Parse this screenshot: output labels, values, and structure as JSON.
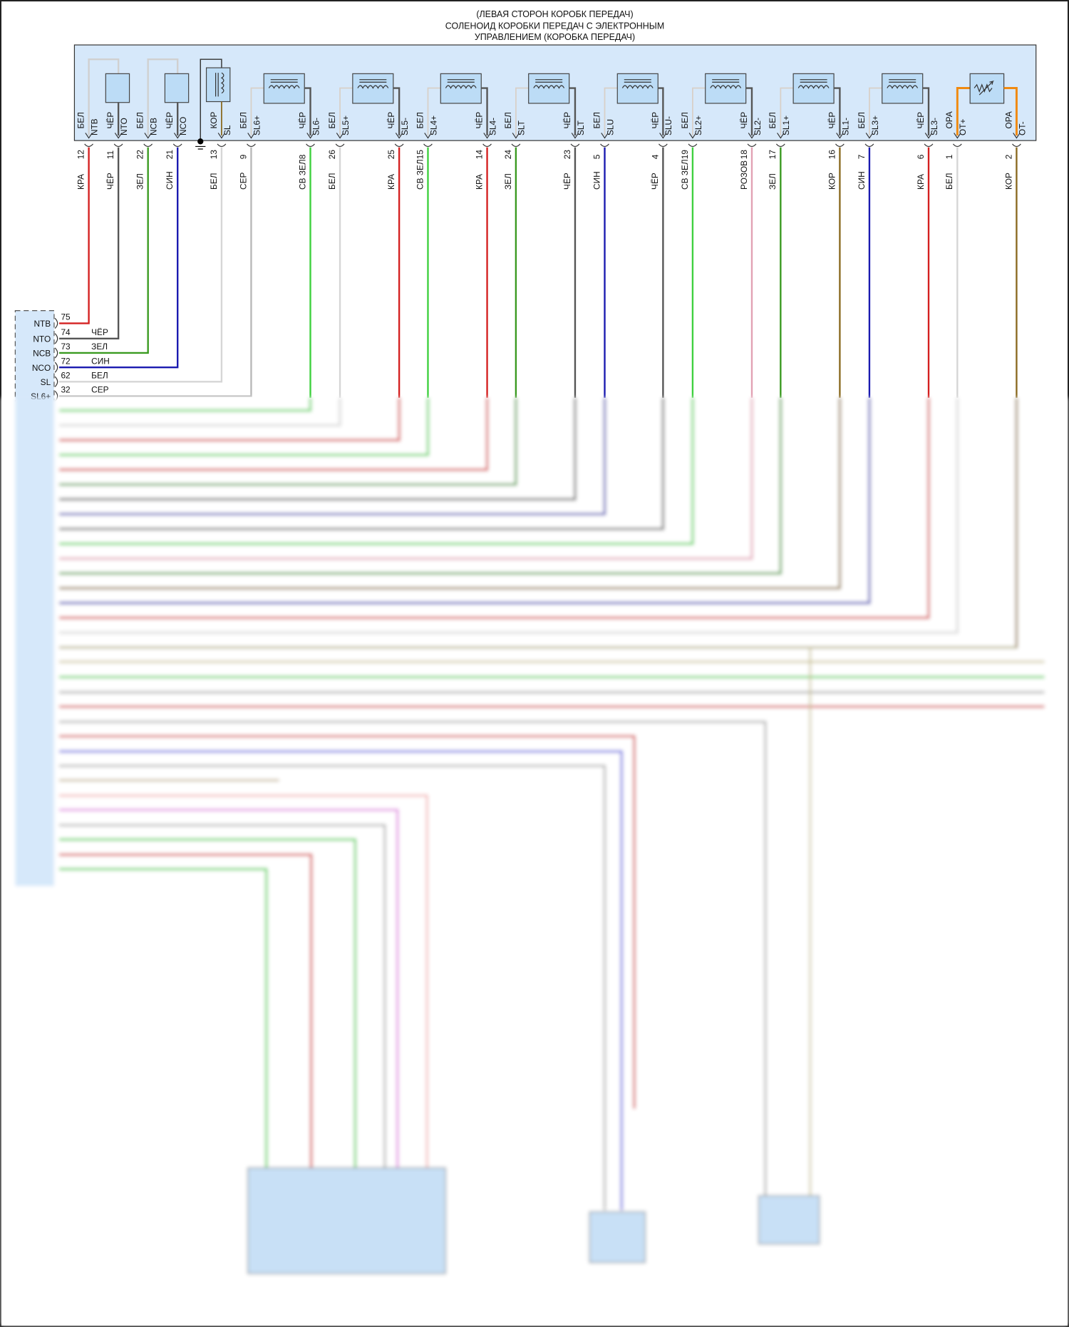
{
  "title": {
    "lines": [
      "(ЛЕВАЯ СТОРОН КОРОБК ПЕРЕДАЧ)",
      "СОЛЕНОИД КОРОБКИ ПЕРЕДАЧ С ЭЛЕКТРОННЫМ",
      "УПРАВЛЕНИЕМ (КОРОБКА ПЕРЕДАЧ)"
    ]
  },
  "wire_colors": {
    "КРА": "#d42020",
    "ЧЁР": "#555555",
    "ЗЕЛ": "#3a9a20",
    "СИН": "#1a1ab0",
    "БЕЛ": "#d6d6d6",
    "СЕР": "#b8b8b8",
    "СВ ЗЕЛ": "#3ed03e",
    "РОЗОВ": "#e2a2b4",
    "КОР": "#8a6a20",
    "ОРА": "#f08a10"
  },
  "panel_fill": "#d6e8fa",
  "pins": [
    {
      "num": "12",
      "wire": "КРА",
      "inner": "БЕЛ",
      "name": "NTB"
    },
    {
      "num": "11",
      "wire": "ЧЁР",
      "inner": "ЧЁР",
      "name": "NTO"
    },
    {
      "num": "22",
      "wire": "ЗЕЛ",
      "inner": "БЕЛ",
      "name": "NCB"
    },
    {
      "num": "21",
      "wire": "СИН",
      "inner": "ЧЁР",
      "name": "NCO"
    },
    {
      "num": "13",
      "wire": "БЕЛ",
      "inner": "КОР",
      "name": "SL"
    },
    {
      "num": "9",
      "wire": "СЕР",
      "inner": "БЕЛ",
      "name": "SL6+"
    },
    {
      "num": "8",
      "wire": "СВ ЗЕЛ",
      "inner": "ЧЁР",
      "name": "SL6-"
    },
    {
      "num": "26",
      "wire": "БЕЛ",
      "inner": "БЕЛ",
      "name": "SL5+"
    },
    {
      "num": "25",
      "wire": "КРА",
      "inner": "ЧЁР",
      "name": "SL5-"
    },
    {
      "num": "15",
      "wire": "СВ ЗЕЛ",
      "inner": "БЕЛ",
      "name": "SL4+"
    },
    {
      "num": "14",
      "wire": "КРА",
      "inner": "ЧЁР",
      "name": "SL4-"
    },
    {
      "num": "24",
      "wire": "ЗЕЛ",
      "inner": "БЕЛ",
      "name": "SLT"
    },
    {
      "num": "23",
      "wire": "ЧЁР",
      "inner": "ЧЁР",
      "name": "SLT"
    },
    {
      "num": "5",
      "wire": "СИН",
      "inner": "БЕЛ",
      "name": "SLU"
    },
    {
      "num": "4",
      "wire": "ЧЁР",
      "inner": "ЧЁР",
      "name": "SLU-"
    },
    {
      "num": "19",
      "wire": "СВ ЗЕЛ",
      "inner": "БЕЛ",
      "name": "SL2+"
    },
    {
      "num": "18",
      "wire": "РОЗОВ",
      "inner": "ЧЁР",
      "name": "SL2-"
    },
    {
      "num": "17",
      "wire": "ЗЕЛ",
      "inner": "БЕЛ",
      "name": "SL1+"
    },
    {
      "num": "16",
      "wire": "КОР",
      "inner": "ЧЁР",
      "name": "SL1-"
    },
    {
      "num": "7",
      "wire": "СИН",
      "inner": "БЕЛ",
      "name": "SL3+"
    },
    {
      "num": "6",
      "wire": "КРА",
      "inner": "ЧЁР",
      "name": "SL3-"
    },
    {
      "num": "1",
      "wire": "БЕЛ",
      "inner": "ОРА",
      "name": "OT+"
    },
    {
      "num": "2",
      "wire": "КОР",
      "inner": "ОРА",
      "name": "OT-"
    }
  ],
  "ecu_pins": [
    {
      "name": "NTB",
      "num": "75",
      "wire": ""
    },
    {
      "name": "NTO",
      "num": "74",
      "wire": "ЧЁР"
    },
    {
      "name": "NCB",
      "num": "73",
      "wire": "ЗЕЛ"
    },
    {
      "name": "NCO",
      "num": "72",
      "wire": "СИН"
    },
    {
      "name": "SL",
      "num": "62",
      "wire": "БЕЛ"
    },
    {
      "name": "SL6+",
      "num": "32",
      "wire": "СЕР"
    }
  ]
}
